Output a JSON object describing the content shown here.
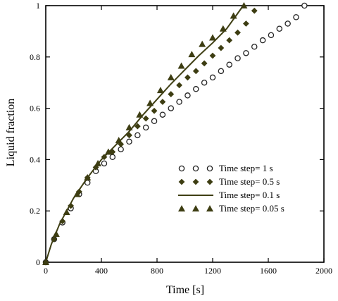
{
  "chart_data": {
    "type": "scatter",
    "xlabel": "Time [s]",
    "ylabel": "Liquid fraction",
    "xlim": [
      0,
      2000
    ],
    "ylim": [
      0,
      1
    ],
    "x_ticks": [
      "0",
      "400",
      "800",
      "1200",
      "1600",
      "2000"
    ],
    "y_ticks": [
      "0",
      "0.2",
      "0.4",
      "0.6",
      "0.8",
      "1"
    ],
    "grid": false,
    "legend_position": "center-right",
    "series": [
      {
        "name": "Time step= 1 s",
        "marker": "open-circle",
        "color": "#222222",
        "points": [
          [
            0,
            0
          ],
          [
            60,
            0.09
          ],
          [
            120,
            0.155
          ],
          [
            180,
            0.21
          ],
          [
            240,
            0.265
          ],
          [
            300,
            0.31
          ],
          [
            360,
            0.355
          ],
          [
            420,
            0.385
          ],
          [
            480,
            0.41
          ],
          [
            540,
            0.44
          ],
          [
            600,
            0.47
          ],
          [
            660,
            0.495
          ],
          [
            720,
            0.525
          ],
          [
            780,
            0.55
          ],
          [
            840,
            0.575
          ],
          [
            900,
            0.6
          ],
          [
            960,
            0.625
          ],
          [
            1020,
            0.65
          ],
          [
            1080,
            0.675
          ],
          [
            1140,
            0.7
          ],
          [
            1200,
            0.72
          ],
          [
            1260,
            0.745
          ],
          [
            1320,
            0.77
          ],
          [
            1380,
            0.795
          ],
          [
            1440,
            0.815
          ],
          [
            1500,
            0.84
          ],
          [
            1560,
            0.865
          ],
          [
            1620,
            0.885
          ],
          [
            1680,
            0.91
          ],
          [
            1740,
            0.93
          ],
          [
            1800,
            0.955
          ],
          [
            1860,
            1.0
          ]
        ]
      },
      {
        "name": "Time step= 0.5 s",
        "marker": "filled-diamond",
        "color": "#3d3d12",
        "points": [
          [
            0,
            0
          ],
          [
            60,
            0.09
          ],
          [
            120,
            0.16
          ],
          [
            180,
            0.22
          ],
          [
            240,
            0.275
          ],
          [
            300,
            0.33
          ],
          [
            360,
            0.37
          ],
          [
            420,
            0.41
          ],
          [
            480,
            0.43
          ],
          [
            540,
            0.46
          ],
          [
            600,
            0.495
          ],
          [
            660,
            0.53
          ],
          [
            720,
            0.56
          ],
          [
            780,
            0.59
          ],
          [
            840,
            0.625
          ],
          [
            900,
            0.655
          ],
          [
            960,
            0.69
          ],
          [
            1020,
            0.72
          ],
          [
            1080,
            0.745
          ],
          [
            1140,
            0.775
          ],
          [
            1200,
            0.805
          ],
          [
            1260,
            0.835
          ],
          [
            1320,
            0.865
          ],
          [
            1380,
            0.895
          ],
          [
            1440,
            0.93
          ],
          [
            1500,
            0.98
          ]
        ]
      },
      {
        "name": "Time step= 0.1 s",
        "marker": "line",
        "color": "#3f3f14",
        "points": [
          [
            0,
            0
          ],
          [
            40,
            0.07
          ],
          [
            100,
            0.15
          ],
          [
            200,
            0.25
          ],
          [
            300,
            0.33
          ],
          [
            400,
            0.4
          ],
          [
            500,
            0.455
          ],
          [
            600,
            0.51
          ],
          [
            700,
            0.575
          ],
          [
            800,
            0.635
          ],
          [
            900,
            0.695
          ],
          [
            1000,
            0.75
          ],
          [
            1100,
            0.805
          ],
          [
            1200,
            0.855
          ],
          [
            1300,
            0.91
          ],
          [
            1400,
            0.985
          ],
          [
            1420,
            1.0
          ]
        ]
      },
      {
        "name": "Time step= 0.05 s",
        "marker": "filled-triangle",
        "color": "#3d3d12",
        "points": [
          [
            0,
            0
          ],
          [
            75,
            0.11
          ],
          [
            150,
            0.195
          ],
          [
            225,
            0.265
          ],
          [
            300,
            0.33
          ],
          [
            375,
            0.385
          ],
          [
            450,
            0.43
          ],
          [
            525,
            0.475
          ],
          [
            600,
            0.525
          ],
          [
            675,
            0.575
          ],
          [
            750,
            0.62
          ],
          [
            825,
            0.67
          ],
          [
            900,
            0.72
          ],
          [
            975,
            0.765
          ],
          [
            1050,
            0.81
          ],
          [
            1125,
            0.85
          ],
          [
            1200,
            0.875
          ],
          [
            1275,
            0.91
          ],
          [
            1350,
            0.96
          ],
          [
            1425,
            1.0
          ]
        ]
      }
    ]
  }
}
